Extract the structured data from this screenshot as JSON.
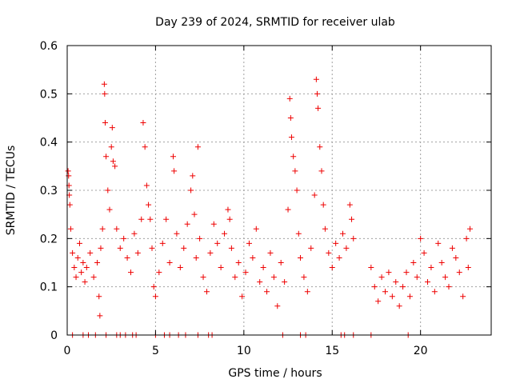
{
  "chart_data": {
    "type": "scatter",
    "title": "Day 239 of 2024, SRMTID for receiver ulab",
    "xlabel": "GPS time / hours",
    "ylabel": "SRMTID / TECUs",
    "xlim": [
      0,
      24
    ],
    "ylim": [
      0,
      0.6
    ],
    "xticks": [
      0,
      5,
      10,
      15,
      20
    ],
    "yticks": [
      0,
      0.1,
      0.2,
      0.3,
      0.4,
      0.5,
      0.6
    ],
    "x_tick_labels": [
      "0",
      "5",
      "10",
      "15",
      "20"
    ],
    "y_tick_labels": [
      "0",
      "0.1",
      "0.2",
      "0.3",
      "0.4",
      "0.5",
      "0.6"
    ],
    "grid": true,
    "marker": "+",
    "colors": {
      "series": "#ee0000",
      "grid": "#a0a0a0",
      "axis": "#000000"
    },
    "series": [
      {
        "name": "SRMTID",
        "points": [
          {
            "x": 0.05,
            "y": 0.34
          },
          {
            "x": 0.08,
            "y": 0.33
          },
          {
            "x": 0.1,
            "y": 0.31
          },
          {
            "x": 0.12,
            "y": 0.29
          },
          {
            "x": 0.15,
            "y": 0.27
          },
          {
            "x": 0.2,
            "y": 0.22
          },
          {
            "x": 0.3,
            "y": 0.17
          },
          {
            "x": 0.4,
            "y": 0.14
          },
          {
            "x": 0.5,
            "y": 0.12
          },
          {
            "x": 0.6,
            "y": 0.16
          },
          {
            "x": 0.7,
            "y": 0.19
          },
          {
            "x": 0.8,
            "y": 0.13
          },
          {
            "x": 0.9,
            "y": 0.15
          },
          {
            "x": 1.0,
            "y": 0.11
          },
          {
            "x": 1.1,
            "y": 0.14
          },
          {
            "x": 1.3,
            "y": 0.17
          },
          {
            "x": 1.5,
            "y": 0.12
          },
          {
            "x": 1.7,
            "y": 0.15
          },
          {
            "x": 1.8,
            "y": 0.08
          },
          {
            "x": 1.85,
            "y": 0.04
          },
          {
            "x": 1.9,
            "y": 0.18
          },
          {
            "x": 2.0,
            "y": 0.22
          },
          {
            "x": 2.1,
            "y": 0.52
          },
          {
            "x": 2.12,
            "y": 0.5
          },
          {
            "x": 2.15,
            "y": 0.44
          },
          {
            "x": 2.2,
            "y": 0.37
          },
          {
            "x": 2.3,
            "y": 0.3
          },
          {
            "x": 2.4,
            "y": 0.26
          },
          {
            "x": 2.5,
            "y": 0.39
          },
          {
            "x": 2.55,
            "y": 0.43
          },
          {
            "x": 2.6,
            "y": 0.36
          },
          {
            "x": 2.7,
            "y": 0.35
          },
          {
            "x": 2.8,
            "y": 0.22
          },
          {
            "x": 3.0,
            "y": 0.18
          },
          {
            "x": 3.2,
            "y": 0.2
          },
          {
            "x": 3.4,
            "y": 0.16
          },
          {
            "x": 3.6,
            "y": 0.13
          },
          {
            "x": 3.8,
            "y": 0.21
          },
          {
            "x": 4.0,
            "y": 0.17
          },
          {
            "x": 4.2,
            "y": 0.24
          },
          {
            "x": 4.3,
            "y": 0.44
          },
          {
            "x": 4.4,
            "y": 0.39
          },
          {
            "x": 4.5,
            "y": 0.31
          },
          {
            "x": 4.6,
            "y": 0.27
          },
          {
            "x": 4.7,
            "y": 0.24
          },
          {
            "x": 4.8,
            "y": 0.18
          },
          {
            "x": 4.9,
            "y": 0.1
          },
          {
            "x": 5.0,
            "y": 0.08
          },
          {
            "x": 5.2,
            "y": 0.13
          },
          {
            "x": 5.4,
            "y": 0.19
          },
          {
            "x": 5.6,
            "y": 0.24
          },
          {
            "x": 5.8,
            "y": 0.15
          },
          {
            "x": 6.0,
            "y": 0.37
          },
          {
            "x": 6.05,
            "y": 0.34
          },
          {
            "x": 6.2,
            "y": 0.21
          },
          {
            "x": 6.4,
            "y": 0.14
          },
          {
            "x": 6.6,
            "y": 0.18
          },
          {
            "x": 6.8,
            "y": 0.23
          },
          {
            "x": 7.0,
            "y": 0.3
          },
          {
            "x": 7.1,
            "y": 0.33
          },
          {
            "x": 7.2,
            "y": 0.25
          },
          {
            "x": 7.3,
            "y": 0.16
          },
          {
            "x": 7.4,
            "y": 0.39
          },
          {
            "x": 7.5,
            "y": 0.2
          },
          {
            "x": 7.7,
            "y": 0.12
          },
          {
            "x": 7.9,
            "y": 0.09
          },
          {
            "x": 8.1,
            "y": 0.17
          },
          {
            "x": 8.3,
            "y": 0.23
          },
          {
            "x": 8.5,
            "y": 0.19
          },
          {
            "x": 8.7,
            "y": 0.14
          },
          {
            "x": 8.9,
            "y": 0.21
          },
          {
            "x": 9.1,
            "y": 0.26
          },
          {
            "x": 9.2,
            "y": 0.24
          },
          {
            "x": 9.3,
            "y": 0.18
          },
          {
            "x": 9.5,
            "y": 0.12
          },
          {
            "x": 9.7,
            "y": 0.15
          },
          {
            "x": 9.9,
            "y": 0.08
          },
          {
            "x": 10.1,
            "y": 0.13
          },
          {
            "x": 10.3,
            "y": 0.19
          },
          {
            "x": 10.5,
            "y": 0.16
          },
          {
            "x": 10.7,
            "y": 0.22
          },
          {
            "x": 10.9,
            "y": 0.11
          },
          {
            "x": 11.1,
            "y": 0.14
          },
          {
            "x": 11.3,
            "y": 0.09
          },
          {
            "x": 11.5,
            "y": 0.17
          },
          {
            "x": 11.7,
            "y": 0.12
          },
          {
            "x": 11.9,
            "y": 0.06
          },
          {
            "x": 12.1,
            "y": 0.15
          },
          {
            "x": 12.3,
            "y": 0.11
          },
          {
            "x": 12.5,
            "y": 0.26
          },
          {
            "x": 12.6,
            "y": 0.49
          },
          {
            "x": 12.65,
            "y": 0.45
          },
          {
            "x": 12.7,
            "y": 0.41
          },
          {
            "x": 12.8,
            "y": 0.37
          },
          {
            "x": 12.9,
            "y": 0.34
          },
          {
            "x": 13.0,
            "y": 0.3
          },
          {
            "x": 13.1,
            "y": 0.21
          },
          {
            "x": 13.2,
            "y": 0.16
          },
          {
            "x": 13.4,
            "y": 0.12
          },
          {
            "x": 13.6,
            "y": 0.09
          },
          {
            "x": 13.8,
            "y": 0.18
          },
          {
            "x": 14.0,
            "y": 0.29
          },
          {
            "x": 14.1,
            "y": 0.53
          },
          {
            "x": 14.15,
            "y": 0.5
          },
          {
            "x": 14.2,
            "y": 0.47
          },
          {
            "x": 14.3,
            "y": 0.39
          },
          {
            "x": 14.4,
            "y": 0.34
          },
          {
            "x": 14.5,
            "y": 0.27
          },
          {
            "x": 14.6,
            "y": 0.22
          },
          {
            "x": 14.8,
            "y": 0.17
          },
          {
            "x": 15.0,
            "y": 0.14
          },
          {
            "x": 15.2,
            "y": 0.19
          },
          {
            "x": 15.4,
            "y": 0.16
          },
          {
            "x": 15.6,
            "y": 0.21
          },
          {
            "x": 15.8,
            "y": 0.18
          },
          {
            "x": 16.0,
            "y": 0.27
          },
          {
            "x": 16.1,
            "y": 0.24
          },
          {
            "x": 16.2,
            "y": 0.2
          },
          {
            "x": 17.2,
            "y": 0.14
          },
          {
            "x": 17.4,
            "y": 0.1
          },
          {
            "x": 17.6,
            "y": 0.07
          },
          {
            "x": 17.8,
            "y": 0.12
          },
          {
            "x": 18.0,
            "y": 0.09
          },
          {
            "x": 18.2,
            "y": 0.13
          },
          {
            "x": 18.4,
            "y": 0.08
          },
          {
            "x": 18.6,
            "y": 0.11
          },
          {
            "x": 18.8,
            "y": 0.06
          },
          {
            "x": 19.0,
            "y": 0.1
          },
          {
            "x": 19.2,
            "y": 0.13
          },
          {
            "x": 19.4,
            "y": 0.08
          },
          {
            "x": 19.6,
            "y": 0.15
          },
          {
            "x": 19.8,
            "y": 0.12
          },
          {
            "x": 20.0,
            "y": 0.2
          },
          {
            "x": 20.2,
            "y": 0.17
          },
          {
            "x": 20.4,
            "y": 0.11
          },
          {
            "x": 20.6,
            "y": 0.14
          },
          {
            "x": 20.8,
            "y": 0.09
          },
          {
            "x": 21.0,
            "y": 0.19
          },
          {
            "x": 21.2,
            "y": 0.15
          },
          {
            "x": 21.4,
            "y": 0.12
          },
          {
            "x": 21.6,
            "y": 0.1
          },
          {
            "x": 21.8,
            "y": 0.18
          },
          {
            "x": 22.0,
            "y": 0.16
          },
          {
            "x": 22.2,
            "y": 0.13
          },
          {
            "x": 22.4,
            "y": 0.08
          },
          {
            "x": 22.6,
            "y": 0.2
          },
          {
            "x": 22.7,
            "y": 0.14
          },
          {
            "x": 22.8,
            "y": 0.22
          },
          {
            "x": 0.3,
            "y": 0
          },
          {
            "x": 0.9,
            "y": 0
          },
          {
            "x": 1.2,
            "y": 0
          },
          {
            "x": 1.6,
            "y": 0
          },
          {
            "x": 2.2,
            "y": 0
          },
          {
            "x": 2.8,
            "y": 0
          },
          {
            "x": 3.0,
            "y": 0
          },
          {
            "x": 3.3,
            "y": 0
          },
          {
            "x": 3.7,
            "y": 0
          },
          {
            "x": 3.9,
            "y": 0
          },
          {
            "x": 5.0,
            "y": 0
          },
          {
            "x": 5.5,
            "y": 0
          },
          {
            "x": 5.8,
            "y": 0
          },
          {
            "x": 6.3,
            "y": 0
          },
          {
            "x": 6.7,
            "y": 0
          },
          {
            "x": 7.4,
            "y": 0
          },
          {
            "x": 8.0,
            "y": 0
          },
          {
            "x": 8.2,
            "y": 0
          },
          {
            "x": 12.2,
            "y": 0
          },
          {
            "x": 13.2,
            "y": 0
          },
          {
            "x": 13.5,
            "y": 0
          },
          {
            "x": 15.5,
            "y": 0
          },
          {
            "x": 15.7,
            "y": 0
          },
          {
            "x": 16.2,
            "y": 0
          },
          {
            "x": 17.2,
            "y": 0
          },
          {
            "x": 19.3,
            "y": 0
          }
        ]
      }
    ]
  }
}
